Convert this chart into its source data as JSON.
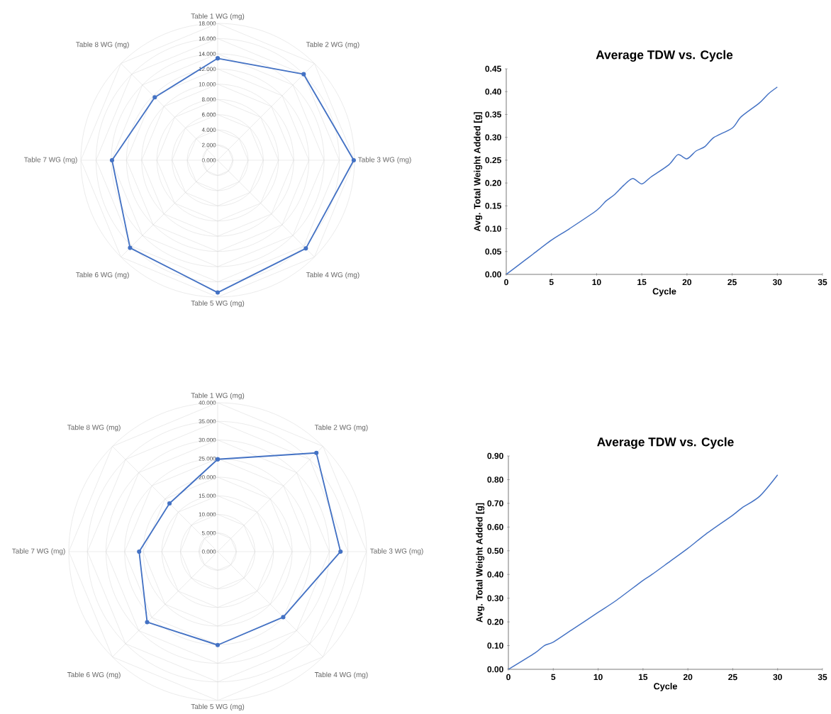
{
  "chart_data": [
    {
      "type": "radar",
      "categories": [
        "Table 1 WG (mg)",
        "Table 2 WG (mg)",
        "Table 3 WG (mg)",
        "Table 4 WG (mg)",
        "Table 5 WG (mg)",
        "Table 6 WG (mg)",
        "Table 7 WG (mg)",
        "Table 8 WG (mg)"
      ],
      "series": [
        {
          "color": "#4472c4",
          "values": [
            13.4,
            16.0,
            17.9,
            16.4,
            17.4,
            16.3,
            13.9,
            11.7
          ]
        }
      ],
      "ylim": [
        0,
        18
      ],
      "yticks": [
        {
          "value": 0,
          "label": "0.000"
        },
        {
          "value": 2,
          "label": "2.000"
        },
        {
          "value": 4,
          "label": "4.000"
        },
        {
          "value": 6,
          "label": "6.000"
        },
        {
          "value": 8,
          "label": "8.000"
        },
        {
          "value": 10,
          "label": "10.000"
        },
        {
          "value": 12,
          "label": "12.000"
        },
        {
          "value": 14,
          "label": "14.000"
        },
        {
          "value": 16,
          "label": "16.000"
        },
        {
          "value": 18,
          "label": "18.000"
        }
      ],
      "grid": true,
      "marker": "circle",
      "line_style": "solid"
    },
    {
      "type": "line",
      "title": "Average TDW vs. Cycle",
      "xlabel": "Cycle",
      "ylabel": "Avg. Total Weight Added [g]",
      "series": [
        {
          "color": "#4472c4",
          "x": [
            0,
            2,
            3,
            5,
            7,
            10,
            11,
            12,
            13,
            14,
            15,
            16,
            18,
            19,
            20,
            21,
            22,
            23,
            25,
            26,
            28,
            29,
            30
          ],
          "values": [
            0,
            0.03,
            0.045,
            0.075,
            0.1,
            0.14,
            0.16,
            0.175,
            0.195,
            0.21,
            0.198,
            0.213,
            0.24,
            0.262,
            0.253,
            0.27,
            0.28,
            0.3,
            0.32,
            0.345,
            0.375,
            0.395,
            0.41
          ]
        }
      ],
      "xlim": [
        0,
        35
      ],
      "xticks": [
        0,
        5,
        10,
        15,
        20,
        25,
        30,
        35
      ],
      "ylim": [
        0,
        0.45
      ],
      "yticks": [
        {
          "value": 0,
          "label": "0.00"
        },
        {
          "value": 0.05,
          "label": "0.05"
        },
        {
          "value": 0.1,
          "label": "0.10"
        },
        {
          "value": 0.15,
          "label": "0.15"
        },
        {
          "value": 0.2,
          "label": "0.20"
        },
        {
          "value": 0.25,
          "label": "0.25"
        },
        {
          "value": 0.3,
          "label": "0.30"
        },
        {
          "value": 0.35,
          "label": "0.35"
        },
        {
          "value": 0.4,
          "label": "0.40"
        },
        {
          "value": 0.45,
          "label": "0.45"
        }
      ],
      "line_style": "solid"
    },
    {
      "type": "radar",
      "categories": [
        "Table 1 WG (mg)",
        "Table 2 WG (mg)",
        "Table 3 WG (mg)",
        "Table 4 WG (mg)",
        "Table 5 WG (mg)",
        "Table 6 WG (mg)",
        "Table 7 WG (mg)",
        "Table 8 WG (mg)"
      ],
      "series": [
        {
          "color": "#4472c4",
          "values": [
            24.8,
            37.5,
            33.0,
            24.9,
            25.1,
            26.8,
            21.1,
            18.3
          ]
        }
      ],
      "ylim": [
        0,
        40
      ],
      "yticks": [
        {
          "value": 0,
          "label": "0.000"
        },
        {
          "value": 5,
          "label": "5.000"
        },
        {
          "value": 10,
          "label": "10.000"
        },
        {
          "value": 15,
          "label": "15.000"
        },
        {
          "value": 20,
          "label": "20.000"
        },
        {
          "value": 25,
          "label": "25.000"
        },
        {
          "value": 30,
          "label": "30.000"
        },
        {
          "value": 35,
          "label": "35.000"
        },
        {
          "value": 40,
          "label": "40.000"
        }
      ],
      "grid": true,
      "marker": "circle",
      "line_style": "solid"
    },
    {
      "type": "line",
      "title": "Average TDW vs. Cycle",
      "xlabel": "Cycle",
      "ylabel": "Avg. Total Weight Added [g]",
      "series": [
        {
          "color": "#4472c4",
          "x": [
            0,
            3,
            4,
            5,
            7,
            10,
            12,
            15,
            16,
            18,
            20,
            22,
            25,
            26,
            28,
            30
          ],
          "values": [
            0,
            0.07,
            0.1,
            0.115,
            0.165,
            0.24,
            0.29,
            0.375,
            0.4,
            0.455,
            0.51,
            0.57,
            0.65,
            0.68,
            0.73,
            0.82
          ]
        }
      ],
      "xlim": [
        0,
        35
      ],
      "xticks": [
        0,
        5,
        10,
        15,
        20,
        25,
        30,
        35
      ],
      "ylim": [
        0,
        0.9
      ],
      "yticks": [
        {
          "value": 0,
          "label": "0.00"
        },
        {
          "value": 0.1,
          "label": "0.10"
        },
        {
          "value": 0.2,
          "label": "0.20"
        },
        {
          "value": 0.3,
          "label": "0.30"
        },
        {
          "value": 0.4,
          "label": "0.40"
        },
        {
          "value": 0.5,
          "label": "0.50"
        },
        {
          "value": 0.6,
          "label": "0.60"
        },
        {
          "value": 0.7,
          "label": "0.70"
        },
        {
          "value": 0.8,
          "label": "0.80"
        },
        {
          "value": 0.9,
          "label": "0.90"
        }
      ],
      "line_style": "solid"
    }
  ]
}
